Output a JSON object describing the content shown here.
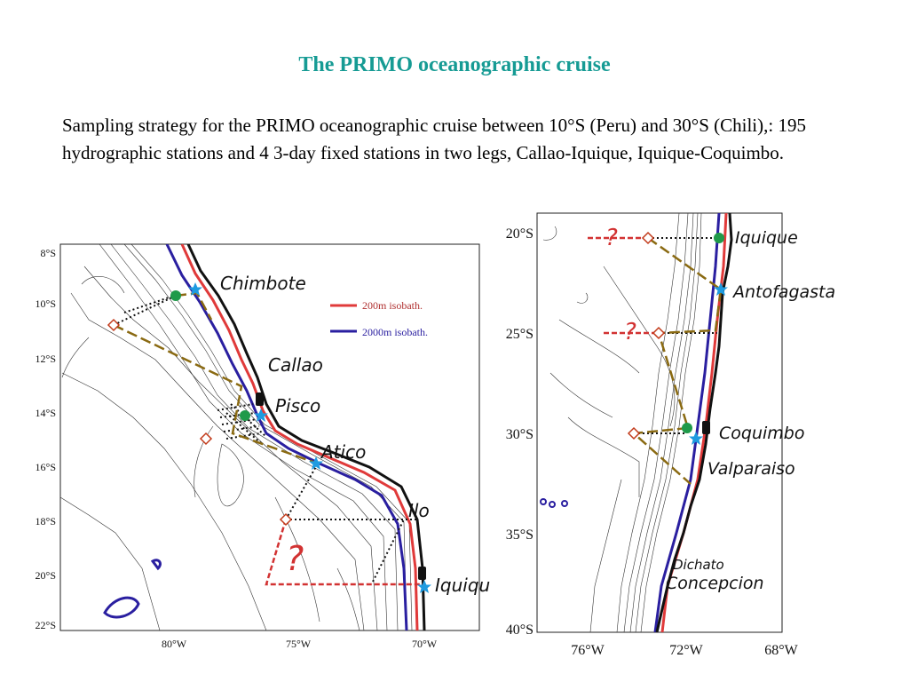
{
  "title": "The PRIMO oceanographic cruise",
  "caption": "Sampling strategy for the PRIMO oceanographic cruise between 10°S (Peru) and 30°S (Chili),: 195 hydrographic stations and 4 3-day fixed stations in two legs, Callao-Iquique, Iquique-Coquimbo.",
  "colors": {
    "title": "#169b94",
    "isobath_200m": "#e03a3a",
    "isobath_2000m": "#2a1fa0",
    "coast": "#111111",
    "leg_track": "#8a6a12",
    "planned_track": "#d23232",
    "station_fixed": "#1f9a4a",
    "port_star": "#1e9be0"
  },
  "left_map": {
    "legend": {
      "isobath_200m": "200m isobath.",
      "isobath_2000m": "2000m isobath."
    },
    "lat_ticks": [
      "8°S",
      "10°S",
      "12°S",
      "14°S",
      "16°S",
      "18°S",
      "20°S",
      "22°S"
    ],
    "lon_ticks": [
      "80°W",
      "75°W",
      "70°W"
    ],
    "place_labels": {
      "chimbote": "Chimbote",
      "callao": "Callao",
      "pisco": "Pisco",
      "atico": "Atico",
      "ilo": "Ilo",
      "iquique": "Iquiqu"
    },
    "question_mark": "?"
  },
  "right_map": {
    "lat_ticks": [
      "20°S",
      "25°S",
      "30°S",
      "35°S",
      "40°S"
    ],
    "lon_ticks": [
      "76°W",
      "72°W",
      "68°W"
    ],
    "place_labels": {
      "iquique": "Iquique",
      "antofagasta": "Antofagasta",
      "coquimbo": "Coquimbo",
      "valparaiso": "Valparaiso",
      "dichato": "Dichato",
      "concepcion": "Concepcion"
    },
    "question_marks": [
      "?",
      "?"
    ]
  }
}
